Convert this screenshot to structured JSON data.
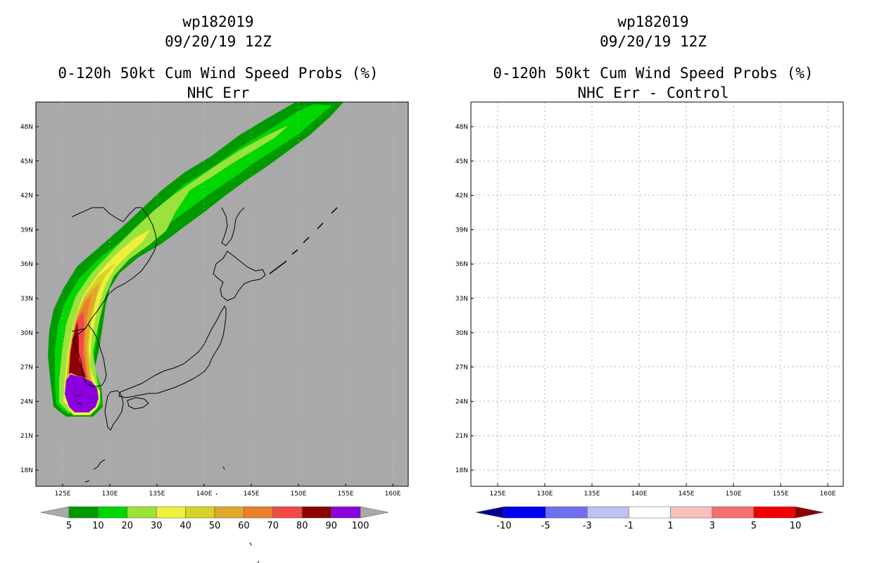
{
  "left_panel": {
    "storm_id": "wp182019",
    "datetime": "09/20/19 12Z",
    "product": "0-120h 50kt Cum Wind Speed Probs (%)",
    "subtitle": "NHC Err",
    "background": "#a9a9a9",
    "colorbar": {
      "labels": [
        "5",
        "10",
        "20",
        "30",
        "40",
        "50",
        "60",
        "70",
        "80",
        "90",
        "100"
      ],
      "colors": [
        "#009a00",
        "#00d600",
        "#9be23c",
        "#f0f03c",
        "#d6d228",
        "#e0a82a",
        "#ec7e2c",
        "#f24848",
        "#8c0000",
        "#8a00dc"
      ],
      "end_colors": [
        "#a9a9a9",
        "#a9a9a9"
      ]
    }
  },
  "right_panel": {
    "storm_id": "wp182019",
    "datetime": "09/20/19 12Z",
    "product": "0-120h 50kt Cum Wind Speed Probs (%)",
    "subtitle": "NHC Err - Control",
    "background": "#ffffff",
    "colorbar": {
      "labels": [
        "-10",
        "-5",
        "-3",
        "-1",
        "1",
        "3",
        "5",
        "10"
      ],
      "colors": [
        "#0000f0",
        "#6f6ff0",
        "#c0c0f4",
        "#ffffff",
        "#fac0c0",
        "#f56f6f",
        "#f00000"
      ],
      "end_colors": [
        "#000090",
        "#8c0000"
      ]
    }
  },
  "axes": {
    "lon_labels": [
      "125E",
      "130E",
      "135E",
      "140E",
      "145E",
      "150E",
      "155E",
      "160E"
    ],
    "lat_labels": [
      "48N",
      "45N",
      "42N",
      "39N",
      "36N",
      "33N",
      "30N",
      "27N",
      "24N",
      "21N",
      "18N"
    ]
  },
  "chart_data": {
    "type": "map",
    "lon_range": [
      121.5,
      161
    ],
    "lat_range": [
      16.5,
      50
    ],
    "storm_track_probability_bands_percent": [
      5,
      10,
      20,
      30,
      40,
      50,
      60,
      70,
      80,
      90,
      100
    ],
    "max_probability_location": {
      "lon": 127.5,
      "lat": 24.2,
      "value": 100
    },
    "difference_field": "near zero everywhere (no shaded differences)"
  }
}
